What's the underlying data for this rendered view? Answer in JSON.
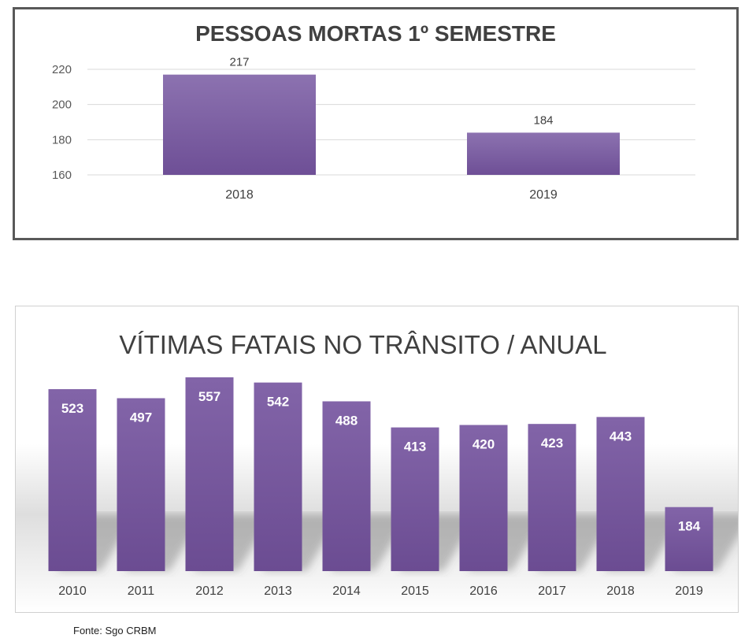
{
  "chart_data": [
    {
      "type": "bar",
      "title": "PESSOAS MORTAS 1º SEMESTRE",
      "categories": [
        "2018",
        "2019"
      ],
      "values": [
        217,
        184
      ],
      "ylim": [
        160,
        220
      ],
      "yticks": [
        160,
        180,
        200,
        220
      ],
      "grid": true,
      "color": "#7b5aa0"
    },
    {
      "type": "bar",
      "title": "VÍTIMAS FATAIS NO TRÂNSITO / ANUAL",
      "categories": [
        "2010",
        "2011",
        "2012",
        "2013",
        "2014",
        "2015",
        "2016",
        "2017",
        "2018",
        "2019"
      ],
      "values": [
        523,
        497,
        557,
        542,
        488,
        413,
        420,
        423,
        443,
        184
      ],
      "ylim": [
        0,
        557
      ],
      "grid": false,
      "color": "#7b5aa0"
    }
  ],
  "source": "Fonte: Sgo CRBM"
}
